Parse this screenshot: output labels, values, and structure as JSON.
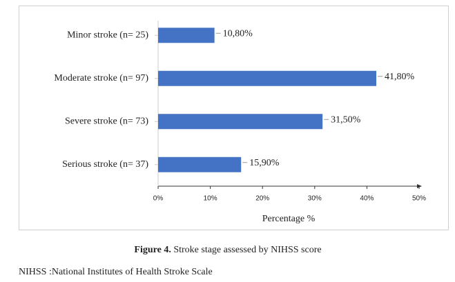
{
  "chart_data": {
    "type": "bar",
    "orientation": "horizontal",
    "categories": [
      "Minor stroke (n= 25)",
      "Moderate stroke (n= 97)",
      "Severe stroke (n= 73)",
      "Serious stroke (n= 37)"
    ],
    "values": [
      10.8,
      41.8,
      31.5,
      15.9
    ],
    "value_labels": [
      "10,80%",
      "41,80%",
      "31,50%",
      "15,90%"
    ],
    "color": "#4472c4",
    "xlim": [
      0,
      50
    ],
    "xticks": [
      {
        "value": 0,
        "label": "0%"
      },
      {
        "value": 10,
        "label": "10%"
      },
      {
        "value": 20,
        "label": "20%"
      },
      {
        "value": 30,
        "label": "30%"
      },
      {
        "value": 40,
        "label": "40%"
      },
      {
        "value": 50,
        "label": "50%"
      }
    ],
    "x_label": "Percentage %"
  },
  "caption": {
    "label": "Figure 4.",
    "text": "Stroke stage assessed by NIHSS score"
  },
  "footnote": "NIHSS :National Institutes of Health Stroke Scale"
}
